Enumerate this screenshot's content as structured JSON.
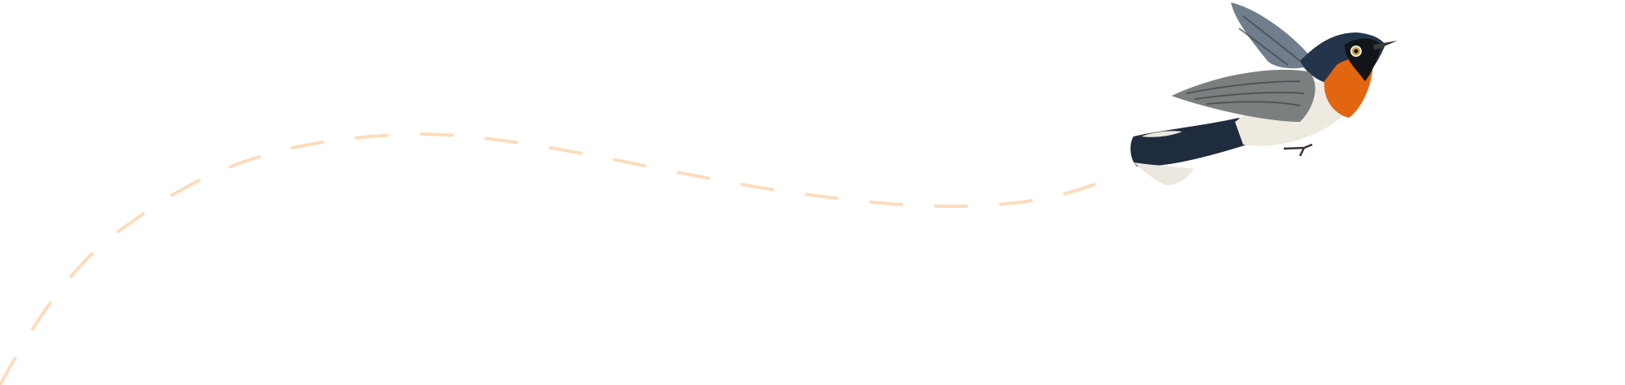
{
  "colors": {
    "background": "#ffffff",
    "flight_path": "#fddcbc",
    "bird_back": "#24344a",
    "bird_throat": "#e2650f",
    "bird_belly": "#efeae0",
    "bird_wing": "#7c7f80"
  },
  "illustration": {
    "subject": "bird-icon",
    "path_style": "dashed"
  }
}
